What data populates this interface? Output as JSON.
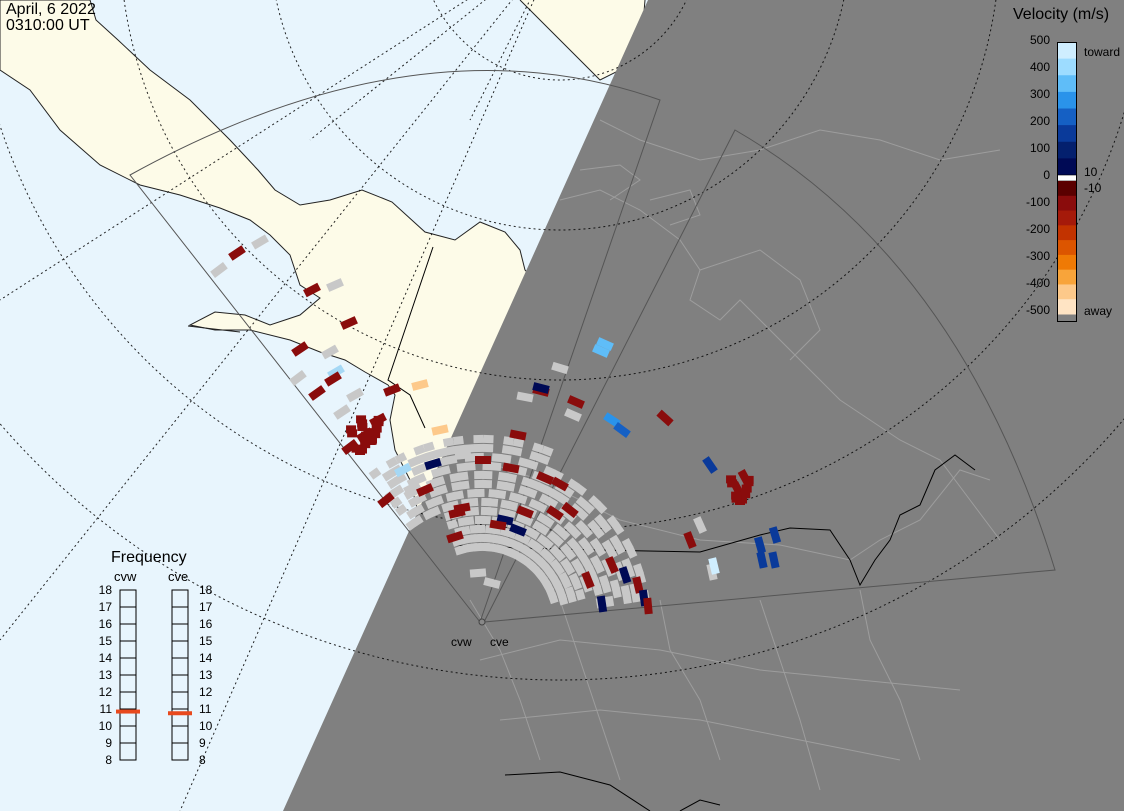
{
  "header": {
    "date": "April, 6 2022",
    "time": "0310:00 UT"
  },
  "velocity_scale": {
    "title": "Velocity (m/s)",
    "ticks": [
      "500",
      "400",
      "300",
      "200",
      "100",
      "0",
      "-100",
      "-200",
      "-300",
      "-400",
      "-500"
    ],
    "toward_label": "toward",
    "away_label": "away",
    "inner_pos_label": "10",
    "inner_neg_label": "-10",
    "colors_toward": [
      "#cfeeff",
      "#9ddcff",
      "#5fbdf8",
      "#2a93ea",
      "#1560c4",
      "#0a3a9a",
      "#04206e",
      "#000a55"
    ],
    "colors_away": [
      "#5a0000",
      "#8a0c0c",
      "#a51a0a",
      "#c23300",
      "#dc5500",
      "#ef7a05",
      "#f8a43a",
      "#fdc98a",
      "#ffe4c4"
    ]
  },
  "frequency": {
    "title": "Frequency",
    "radars": [
      {
        "name": "cvw",
        "frequency_mhz": 10.85
      },
      {
        "name": "cve",
        "frequency_mhz": 10.75
      }
    ],
    "scale": [
      "18",
      "17",
      "16",
      "15",
      "14",
      "13",
      "12",
      "11",
      "10",
      "9",
      "8"
    ],
    "marker_color": "#e8491d"
  },
  "radar_sites": {
    "cvw": "cvw",
    "cve": "cve"
  },
  "colors": {
    "ocean": "#e8f5fd",
    "land": "#fdfbe8",
    "night": "#808080",
    "ground_scatter": "#c8c8c8"
  }
}
